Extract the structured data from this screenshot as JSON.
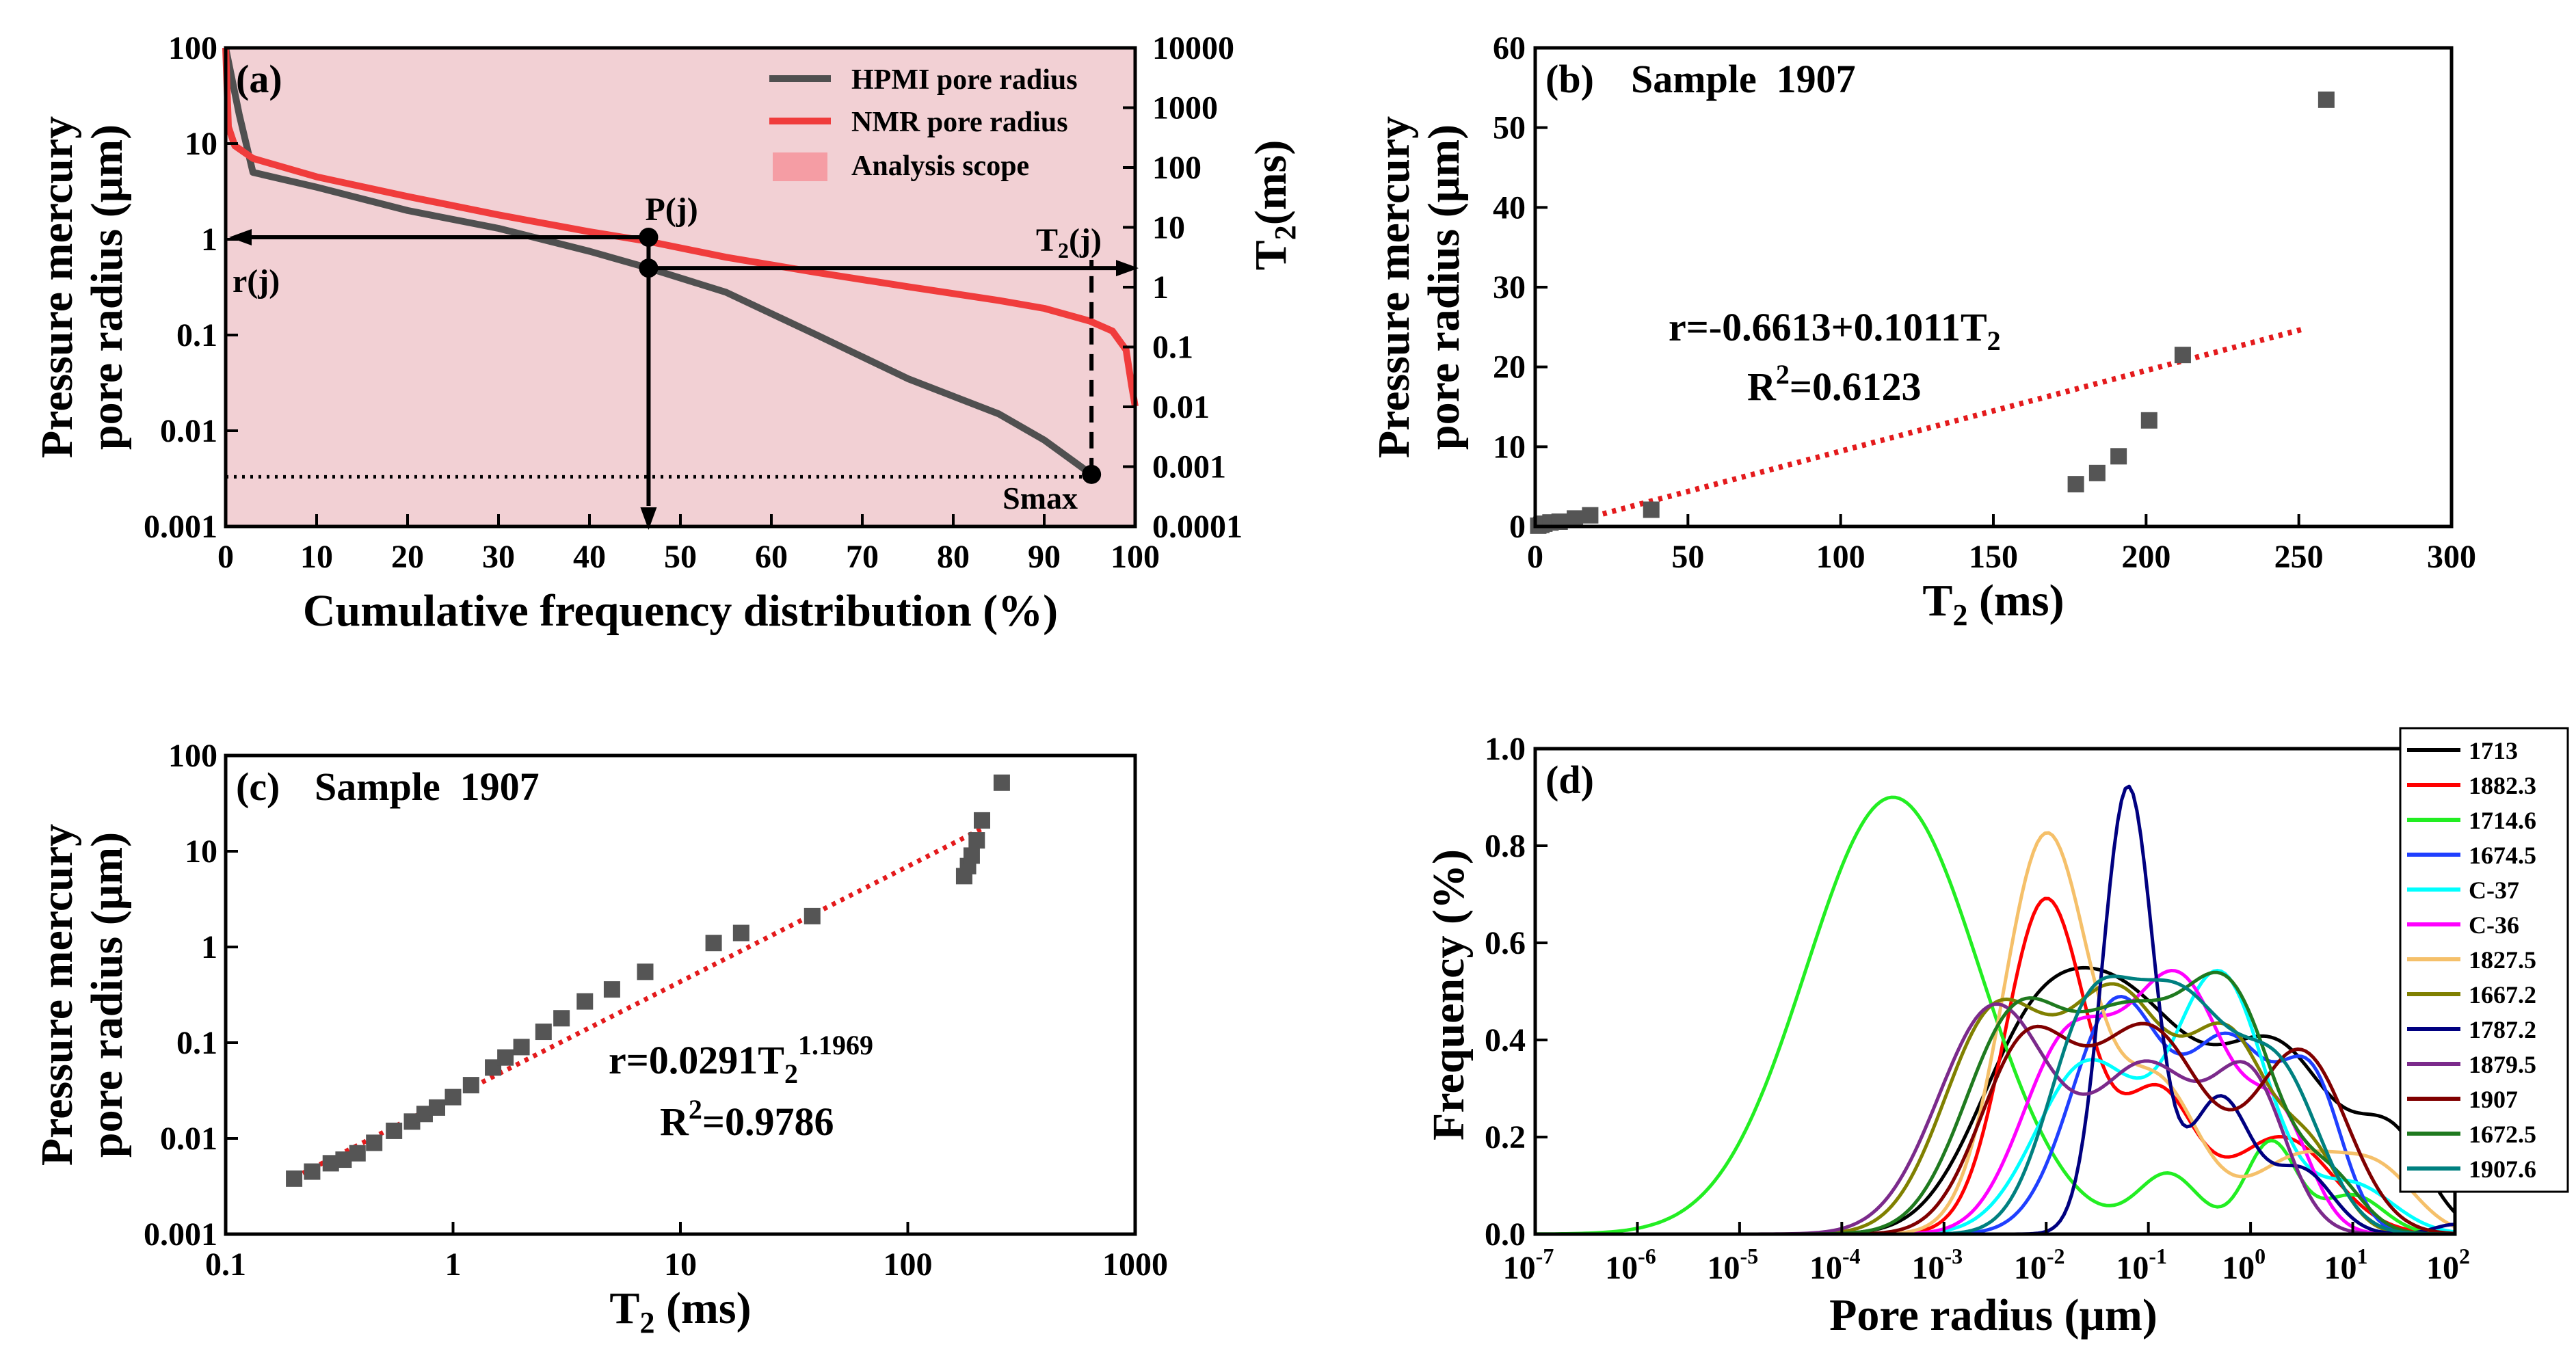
{
  "figure": "Four-panel figure relating HPMI pore radius and NMR T2",
  "chart_data": [
    {
      "id": "a",
      "type": "line",
      "panel_label": "(a)",
      "xlabel": "Cumulative frequency distribution (%)",
      "ylabel_line1": "Pressure mercury",
      "ylabel_line2": "pore radius (μm)",
      "y2label": "T2(ms)",
      "xlim": [
        0,
        100
      ],
      "xticks": [
        "0",
        "10",
        "20",
        "30",
        "40",
        "50",
        "60",
        "70",
        "80",
        "90",
        "100"
      ],
      "ylim": [
        0.001,
        100
      ],
      "yscale": "log",
      "yticks": [
        "0.001",
        "0.01",
        "0.1",
        "1",
        "10",
        "100"
      ],
      "y2lim": [
        0.0001,
        10000
      ],
      "y2scale": "log",
      "y2ticks": [
        "0.0001",
        "0.001",
        "0.01",
        "0.1",
        "1",
        "10",
        "100",
        "1000",
        "10000"
      ],
      "series": [
        {
          "name": "HPMI pore radius",
          "color": "#505050",
          "x": [
            0,
            1.5,
            3,
            10,
            20,
            30,
            40,
            46.5,
            55,
            65,
            75,
            85,
            90,
            95.2
          ],
          "y": [
            100,
            20,
            5,
            3.5,
            2,
            1.3,
            0.75,
            0.5,
            0.28,
            0.1,
            0.035,
            0.015,
            0.008,
            0.0035
          ]
        },
        {
          "name": "NMR pore radius",
          "color": "#f03c3c",
          "x": [
            0,
            0.3,
            1,
            3,
            10,
            20,
            30,
            40,
            46.5,
            55,
            65,
            75,
            85,
            90,
            95,
            97.5,
            99,
            99.6,
            100
          ],
          "y": [
            100,
            15,
            9.5,
            7,
            4.5,
            2.8,
            1.8,
            1.2,
            0.95,
            0.65,
            0.45,
            0.32,
            0.23,
            0.19,
            0.14,
            0.11,
            0.07,
            0.03,
            0.018
          ]
        }
      ],
      "legend": [
        "HPMI pore radius",
        "NMR pore radius",
        "Analysis scope"
      ],
      "analysis_scope_color": "#f2d0d4",
      "annotations": {
        "pj": "P(j)",
        "rj": "r(j)",
        "t2j": "T2(j)",
        "smax": "Smax"
      },
      "markers": [
        {
          "x": 46.5,
          "y": 1.05
        },
        {
          "x": 46.5,
          "y": 0.5
        },
        {
          "x": 95.2,
          "y": 0.0035
        }
      ],
      "dotted_level": 0.0033
    },
    {
      "id": "b",
      "type": "scatter",
      "panel_label": "(b)",
      "title": "Sample  1907",
      "xlabel": "T2 (ms)",
      "ylabel_line1": "Pressure mercury",
      "ylabel_line2": "pore radius (μm)",
      "xlim": [
        0,
        300
      ],
      "xticks": [
        "0",
        "50",
        "100",
        "150",
        "200",
        "250",
        "300"
      ],
      "ylim": [
        0,
        60
      ],
      "yticks": [
        "0",
        "10",
        "20",
        "30",
        "40",
        "50",
        "60"
      ],
      "points": {
        "x": [
          1,
          2,
          3,
          5,
          8,
          13,
          18,
          38,
          177,
          184,
          191,
          201,
          212,
          259
        ],
        "y": [
          0.1,
          0.2,
          0.35,
          0.5,
          0.6,
          1.0,
          1.4,
          2.1,
          5.3,
          6.7,
          8.8,
          13.3,
          21.5,
          53.5
        ]
      },
      "fit": {
        "x": [
          10,
          252
        ],
        "y": [
          0.35,
          24.8
        ],
        "color": "#e41a1c"
      },
      "equation": "r=-0.6613+0.1011T2",
      "r2": "R2=0.6123"
    },
    {
      "id": "c",
      "type": "scatter",
      "panel_label": "(c)",
      "title": "Sample  1907",
      "xlabel": "T2 (ms)",
      "ylabel_line1": "Pressure mercury",
      "ylabel_line2": "pore radius (μm)",
      "xlim": [
        0.1,
        1000
      ],
      "xscale": "log",
      "xticks": [
        "0.1",
        "1",
        "10",
        "100",
        "1000"
      ],
      "ylim": [
        0.001,
        100
      ],
      "yscale": "log",
      "yticks": [
        "0.001",
        "0.01",
        "0.1",
        "1",
        "10",
        "100"
      ],
      "points": {
        "x": [
          0.2,
          0.24,
          0.29,
          0.33,
          0.38,
          0.45,
          0.55,
          0.66,
          0.75,
          0.85,
          1.0,
          1.2,
          1.5,
          1.7,
          2.0,
          2.5,
          3.0,
          3.8,
          5.0,
          7.0,
          14,
          18.5,
          38,
          177,
          184,
          191,
          201,
          212,
          259
        ],
        "y": [
          0.0038,
          0.0045,
          0.0055,
          0.006,
          0.007,
          0.009,
          0.012,
          0.015,
          0.018,
          0.021,
          0.027,
          0.036,
          0.055,
          0.07,
          0.09,
          0.13,
          0.18,
          0.27,
          0.36,
          0.55,
          1.1,
          1.4,
          2.1,
          5.5,
          7,
          9,
          13,
          21,
          52
        ]
      },
      "fit": {
        "x": [
          0.2,
          210
        ],
        "y": [
          0.0039,
          17
        ],
        "color": "#e41a1c"
      },
      "equation_base": "r=0.0291T",
      "equation_sub": "2",
      "equation_sup": "1.1969",
      "r2": "R2=0.9786"
    },
    {
      "id": "d",
      "type": "line",
      "panel_label": "(d)",
      "xlabel": "Pore radius (μm)",
      "ylabel": "Frequency (%)",
      "xlim_exp": [
        -7,
        2
      ],
      "xscale": "log",
      "xtick_exponents": [
        "-7",
        "-6",
        "-5",
        "-4",
        "-3",
        "-2",
        "-1",
        "0",
        "1",
        "2"
      ],
      "xtick_base": "10",
      "ylim": [
        0,
        1.0
      ],
      "yticks": [
        "0.0",
        "0.2",
        "0.4",
        "0.6",
        "0.8",
        "1.0"
      ],
      "series": [
        {
          "name": "1713",
          "color": "#000000",
          "peaks": [
            [
              -2.2,
              0.3,
              0.55
            ],
            [
              -1.2,
              0.45,
              0.7
            ],
            [
              0.3,
              0.35,
              0.55
            ],
            [
              1.4,
              0.18,
              0.35
            ]
          ]
        },
        {
          "name": "1882.3",
          "color": "#ff0000",
          "peaks": [
            [
              -2.0,
              0.69,
              0.4
            ],
            [
              -0.9,
              0.28,
              0.35
            ],
            [
              0.3,
              0.2,
              0.5
            ]
          ]
        },
        {
          "name": "1714.6",
          "color": "#22ee22",
          "peaks": [
            [
              -3.5,
              0.9,
              0.85
            ],
            [
              -0.8,
              0.12,
              0.3
            ],
            [
              0.2,
              0.19,
              0.25
            ],
            [
              1.0,
              0.08,
              0.3
            ]
          ]
        },
        {
          "name": "1674.5",
          "color": "#1f3fff",
          "peaks": [
            [
              -1.3,
              0.48,
              0.45
            ],
            [
              -0.2,
              0.38,
              0.4
            ],
            [
              0.6,
              0.3,
              0.3
            ]
          ]
        },
        {
          "name": "C-37",
          "color": "#00ffff",
          "peaks": [
            [
              -1.6,
              0.35,
              0.5
            ],
            [
              -0.3,
              0.53,
              0.45
            ],
            [
              1.0,
              0.1,
              0.4
            ]
          ]
        },
        {
          "name": "C-36",
          "color": "#ff00ff",
          "peaks": [
            [
              -1.8,
              0.38,
              0.45
            ],
            [
              -0.7,
              0.52,
              0.5
            ],
            [
              0.3,
              0.2,
              0.3
            ]
          ]
        },
        {
          "name": "1827.5",
          "color": "#f5c06a",
          "peaks": [
            [
              -2.0,
              0.82,
              0.42
            ],
            [
              -0.9,
              0.3,
              0.4
            ],
            [
              0.5,
              0.16,
              0.5
            ],
            [
              1.3,
              0.1,
              0.35
            ]
          ]
        },
        {
          "name": "1667.2",
          "color": "#808000",
          "peaks": [
            [
              -2.5,
              0.45,
              0.5
            ],
            [
              -1.3,
              0.48,
              0.5
            ],
            [
              -0.2,
              0.38,
              0.4
            ],
            [
              0.6,
              0.15,
              0.3
            ]
          ]
        },
        {
          "name": "1787.2",
          "color": "#000080",
          "peaks": [
            [
              -1.2,
              0.92,
              0.25
            ],
            [
              -0.3,
              0.28,
              0.3
            ],
            [
              0.5,
              0.13,
              0.3
            ],
            [
              2.0,
              0.02,
              0.2
            ]
          ]
        },
        {
          "name": "1879.5",
          "color": "#7b2a8b",
          "peaks": [
            [
              -2.5,
              0.47,
              0.55
            ],
            [
              -1.0,
              0.34,
              0.5
            ],
            [
              0.0,
              0.3,
              0.35
            ]
          ]
        },
        {
          "name": "1907",
          "color": "#800000",
          "peaks": [
            [
              -2.2,
              0.38,
              0.45
            ],
            [
              -1.0,
              0.42,
              0.55
            ],
            [
              0.5,
              0.37,
              0.45
            ]
          ]
        },
        {
          "name": "1672.5",
          "color": "#1f7a1f",
          "peaks": [
            [
              -2.3,
              0.44,
              0.5
            ],
            [
              -1.2,
              0.4,
              0.5
            ],
            [
              -0.2,
              0.47,
              0.45
            ],
            [
              0.8,
              0.1,
              0.3
            ]
          ]
        },
        {
          "name": "1907.6",
          "color": "#008080",
          "peaks": [
            [
              -1.6,
              0.4,
              0.4
            ],
            [
              -0.7,
              0.47,
              0.5
            ],
            [
              0.3,
              0.3,
              0.4
            ]
          ]
        }
      ]
    }
  ]
}
